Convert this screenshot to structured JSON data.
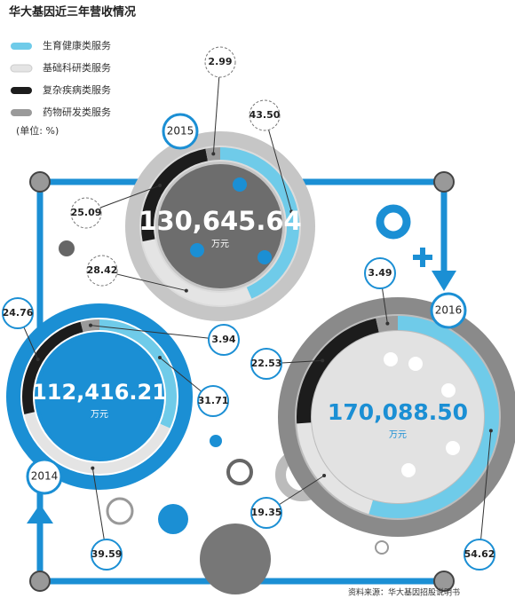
{
  "title": "华大基因近三年营收情况",
  "legend": [
    {
      "name": "生育健康类服务",
      "color": "#6fcbe9"
    },
    {
      "name": "基础科研类服务",
      "color": "#e4e4e4"
    },
    {
      "name": "复杂疾病类服务",
      "color": "#1c1c1c"
    },
    {
      "name": "药物研发类服务",
      "color": "#9a9a9a"
    }
  ],
  "unit": "(单位: %)",
  "source": "资料来源：华大基因招股说明书",
  "chart_data": [
    {
      "type": "pie",
      "title": "2015",
      "total": "130,645.64",
      "total_unit": "万元",
      "values": [
        43.5,
        28.42,
        25.09,
        2.99
      ],
      "value_labels": [
        "43.50",
        "28.42",
        "25.09",
        "2.99"
      ]
    },
    {
      "type": "pie",
      "title": "2014",
      "total": "112,416.21",
      "total_unit": "万元",
      "values": [
        31.71,
        39.59,
        24.76,
        3.94
      ]
    },
    {
      "type": "pie",
      "title": "2016",
      "total": "170,088.50",
      "total_unit": "万元",
      "values": [
        54.62,
        19.35,
        22.53,
        3.49
      ]
    }
  ]
}
